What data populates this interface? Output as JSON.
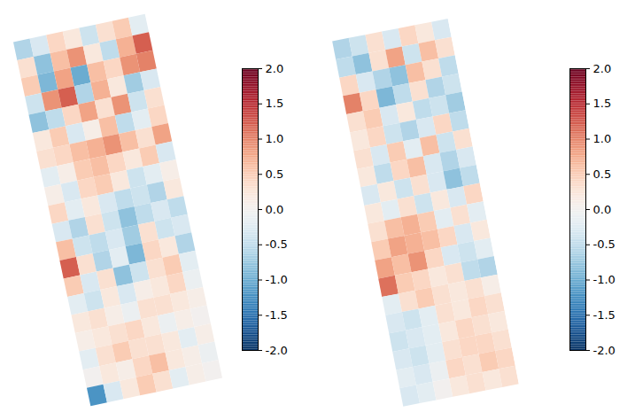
{
  "chart_data": [
    {
      "type": "heatmap",
      "color": "RdBu",
      "tick_labels": false,
      "color_range": [
        -2,
        2
      ],
      "color_ticks": [
        {
          "value": -2,
          "label": "-2.0"
        },
        {
          "value": -1.5,
          "label": "-1.5"
        },
        {
          "value": -1,
          "label": "-1.0"
        },
        {
          "value": -0.5,
          "label": "-0.5"
        },
        {
          "value": 0,
          "label": "0.0"
        },
        {
          "value": 0.5,
          "label": "0.5"
        },
        {
          "value": 1,
          "label": "1.0"
        },
        {
          "value": 1.5,
          "label": "1.5"
        },
        {
          "value": 2,
          "label": "2.0"
        }
      ],
      "cells": [
        [
          -0.6,
          -0.3,
          0.4,
          0.2,
          -0.4,
          0.3,
          0.5,
          -0.2
        ],
        [
          0.3,
          -0.8,
          0.6,
          0.9,
          0.2,
          -0.5,
          0.7,
          1.2
        ],
        [
          0.5,
          -0.9,
          0.8,
          -1.0,
          0.6,
          0.4,
          0.9,
          1.0
        ],
        [
          -0.4,
          0.9,
          1.2,
          -0.6,
          0.7,
          0.2,
          -0.7,
          -0.3
        ],
        [
          -0.8,
          -0.5,
          0.4,
          0.8,
          0.3,
          0.9,
          -0.4,
          0.3
        ],
        [
          0.2,
          0.5,
          -0.3,
          0.1,
          0.6,
          -0.5,
          -0.2,
          0.4
        ],
        [
          0.3,
          0.4,
          0.6,
          0.7,
          0.9,
          0.6,
          0.3,
          0.8
        ],
        [
          -0.2,
          0.1,
          0.5,
          0.6,
          0.4,
          0.2,
          0.5,
          -0.3
        ],
        [
          0.1,
          -0.3,
          0.4,
          0.5,
          0.2,
          -0.4,
          -0.2,
          0.1
        ],
        [
          0.4,
          -0.2,
          0.2,
          -0.3,
          -0.5,
          -0.4,
          -0.6,
          0.2
        ],
        [
          -0.3,
          -0.6,
          0.3,
          -0.4,
          -0.8,
          -0.5,
          -0.3,
          -0.5
        ],
        [
          0.6,
          -0.4,
          -0.5,
          -0.3,
          -0.7,
          0.3,
          -0.4,
          -0.3
        ],
        [
          1.2,
          0.3,
          -0.6,
          -0.2,
          -0.9,
          0.4,
          0.2,
          -0.6
        ],
        [
          0.5,
          -0.3,
          0.3,
          -0.8,
          -0.4,
          0.3,
          0.5,
          -0.2
        ],
        [
          -0.2,
          -0.4,
          0.2,
          -0.3,
          0.1,
          0.2,
          0.4,
          -0.1
        ],
        [
          0.2,
          0.3,
          0.1,
          -0.1,
          0.3,
          0.3,
          0.2,
          0.1
        ],
        [
          0.1,
          0.2,
          0.3,
          0.4,
          0.2,
          -0.1,
          0.1,
          0.0
        ],
        [
          -0.2,
          0.3,
          0.5,
          0.3,
          0.3,
          0.2,
          -0.2,
          0.1
        ],
        [
          0.0,
          0.2,
          0.1,
          0.4,
          0.6,
          0.2,
          0.1,
          -0.1
        ],
        [
          -1.2,
          -0.3,
          0.2,
          0.5,
          0.3,
          -0.2,
          0.1,
          0.0
        ]
      ]
    },
    {
      "type": "heatmap",
      "color": "RdBu",
      "tick_labels": false,
      "color_range": [
        -2,
        2
      ],
      "color_ticks": [
        {
          "value": -2,
          "label": "-2.0"
        },
        {
          "value": -1.5,
          "label": "-1.5"
        },
        {
          "value": -1,
          "label": "-1.0"
        },
        {
          "value": -0.5,
          "label": "-0.5"
        },
        {
          "value": 0,
          "label": "0.0"
        },
        {
          "value": 0.5,
          "label": "0.5"
        },
        {
          "value": 1,
          "label": "1.0"
        },
        {
          "value": 1.5,
          "label": "1.5"
        },
        {
          "value": 2,
          "label": "2.0"
        }
      ],
      "cells": [
        [
          -0.6,
          -0.4,
          0.3,
          -0.3,
          0.4,
          0.2,
          -0.3
        ],
        [
          -0.5,
          -0.8,
          0.3,
          0.8,
          -0.4,
          0.6,
          0.3
        ],
        [
          0.4,
          -0.3,
          -0.6,
          -0.8,
          0.6,
          0.3,
          -0.5
        ],
        [
          1.0,
          0.4,
          -0.9,
          -0.5,
          0.3,
          -0.6,
          -0.4
        ],
        [
          0.3,
          0.5,
          -0.3,
          0.2,
          -0.5,
          -0.4,
          -0.7
        ],
        [
          0.2,
          0.4,
          -0.4,
          -0.6,
          -0.3,
          0.4,
          -0.5
        ],
        [
          0.3,
          -0.3,
          0.5,
          -0.2,
          0.6,
          -0.4,
          0.3
        ],
        [
          0.2,
          -0.5,
          0.4,
          0.6,
          -0.3,
          -0.6,
          -0.3
        ],
        [
          -0.3,
          0.2,
          -0.4,
          0.3,
          -0.3,
          -0.8,
          -0.5
        ],
        [
          0.2,
          -0.2,
          0.3,
          -0.4,
          0.2,
          -0.3,
          0.4
        ],
        [
          0.3,
          0.6,
          0.7,
          0.5,
          -0.2,
          0.3,
          -0.2
        ],
        [
          0.5,
          0.8,
          0.7,
          0.6,
          0.4,
          -0.3,
          0.2
        ],
        [
          0.8,
          0.6,
          0.9,
          0.4,
          -0.3,
          -0.4,
          -0.2
        ],
        [
          1.1,
          0.5,
          0.4,
          0.2,
          0.3,
          -0.5,
          -0.6
        ],
        [
          -0.2,
          0.3,
          0.5,
          0.3,
          0.2,
          0.3,
          0.1
        ],
        [
          -0.3,
          -0.4,
          -0.2,
          0.3,
          0.2,
          0.4,
          0.3
        ],
        [
          -0.4,
          -0.3,
          -0.2,
          0.2,
          0.4,
          0.3,
          0.2
        ],
        [
          -0.3,
          -0.4,
          -0.2,
          0.3,
          0.4,
          0.4,
          0.3
        ],
        [
          -0.2,
          -0.3,
          -0.1,
          0.4,
          0.3,
          0.5,
          0.4
        ],
        [
          -0.3,
          -0.2,
          0.0,
          0.2,
          0.3,
          0.2,
          0.3
        ]
      ]
    }
  ]
}
